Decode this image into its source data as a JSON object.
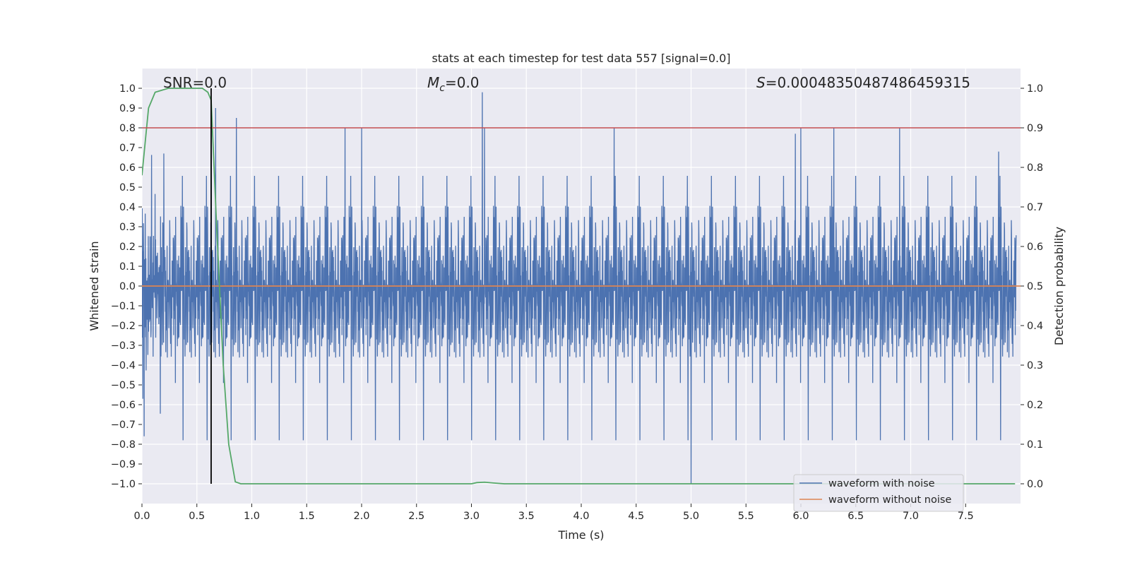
{
  "chart_data": {
    "type": "line",
    "title": "stats at each timestep for test data 557 [signal=0.0]",
    "xlabel": "Time (s)",
    "ylabel_left": "Whitened strain",
    "ylabel_right": "Detection probability",
    "xlim": [
      0.0,
      8.0
    ],
    "ylim_left": [
      -1.1,
      1.1
    ],
    "ylim_right": [
      -0.05,
      1.05
    ],
    "x_ticks": [
      0.0,
      0.5,
      1.0,
      1.5,
      2.0,
      2.5,
      3.0,
      3.5,
      4.0,
      4.5,
      5.0,
      5.5,
      6.0,
      6.5,
      7.0,
      7.5
    ],
    "x_tick_labels": [
      "0.0",
      "0.5",
      "1.0",
      "1.5",
      "2.0",
      "2.5",
      "3.0",
      "3.5",
      "4.0",
      "4.5",
      "5.0",
      "5.5",
      "6.0",
      "6.5",
      "7.0",
      "7.5"
    ],
    "y_left_ticks": [
      1.0,
      0.9,
      0.8,
      0.7,
      0.6,
      0.5,
      0.4,
      0.3,
      0.2,
      0.1,
      0.0,
      -0.1,
      -0.2,
      -0.3,
      -0.4,
      -0.5,
      -0.6,
      -0.7,
      -0.8,
      -0.9,
      -1.0
    ],
    "y_left_tick_labels": [
      "1.0",
      "0.9",
      "0.8",
      "0.7",
      "0.6",
      "0.5",
      "0.4",
      "0.3",
      "0.2",
      "0.1",
      "0.0",
      "−0.1",
      "−0.2",
      "−0.3",
      "−0.4",
      "−0.5",
      "−0.6",
      "−0.7",
      "−0.8",
      "−0.9",
      "−1.0"
    ],
    "y_right_ticks": [
      1.0,
      0.9,
      0.8,
      0.7,
      0.6,
      0.5,
      0.4,
      0.3,
      0.2,
      0.1,
      0.0
    ],
    "y_right_tick_labels": [
      "1.0",
      "0.9",
      "0.8",
      "0.7",
      "0.6",
      "0.5",
      "0.4",
      "0.3",
      "0.2",
      "0.1",
      "0.0"
    ],
    "grid": true,
    "annotations": {
      "snr": "SNR=0.0",
      "mc_symbol": "M",
      "mc_sub": "c",
      "mc_value": "=0.0",
      "s_symbol": "S",
      "s_value": "=0.00048350487486459315"
    },
    "legend": {
      "placement": "lower-right",
      "entries": [
        "waveform with noise",
        "waveform without noise"
      ]
    },
    "series": [
      {
        "name": "waveform with noise",
        "axis": "left",
        "color": "#4c72b0",
        "style": "noise",
        "noise_amplitude": 0.38,
        "peaks_x": [
          0.02,
          0.2,
          0.63,
          0.67,
          0.86,
          1.85,
          2.0,
          3.1,
          3.12,
          4.3,
          5.0,
          5.95,
          6.0,
          6.3,
          6.9,
          7.8
        ],
        "peaks_y": [
          -0.76,
          0.67,
          0.92,
          0.9,
          0.85,
          0.8,
          0.8,
          0.98,
          0.8,
          0.8,
          -1.0,
          0.77,
          0.8,
          0.8,
          0.8,
          0.68
        ]
      },
      {
        "name": "waveform without noise",
        "axis": "left",
        "color": "#dd8452",
        "x": [
          0.0,
          8.0
        ],
        "y": [
          0.0,
          0.0
        ]
      },
      {
        "name": "detection probability",
        "axis": "right",
        "color": "#55a868",
        "x": [
          0.0,
          0.06,
          0.12,
          0.24,
          0.35,
          0.47,
          0.55,
          0.6,
          0.63,
          0.68,
          0.74,
          0.79,
          0.85,
          0.9,
          2.9,
          3.0,
          3.05,
          3.12,
          3.2,
          3.3,
          7.95
        ],
        "y": [
          0.78,
          0.95,
          0.99,
          1.0,
          1.0,
          1.0,
          1.0,
          0.99,
          0.97,
          0.65,
          0.3,
          0.1,
          0.005,
          0.0,
          0.0,
          0.0,
          0.003,
          0.004,
          0.002,
          0.0,
          0.0
        ]
      }
    ],
    "hlines": [
      {
        "axis": "right",
        "y": 0.9,
        "color": "#c44e52"
      }
    ],
    "vlines": [
      {
        "x": 0.63,
        "y_range_left": [
          -1.0,
          1.0
        ],
        "color": "#000000"
      }
    ]
  }
}
